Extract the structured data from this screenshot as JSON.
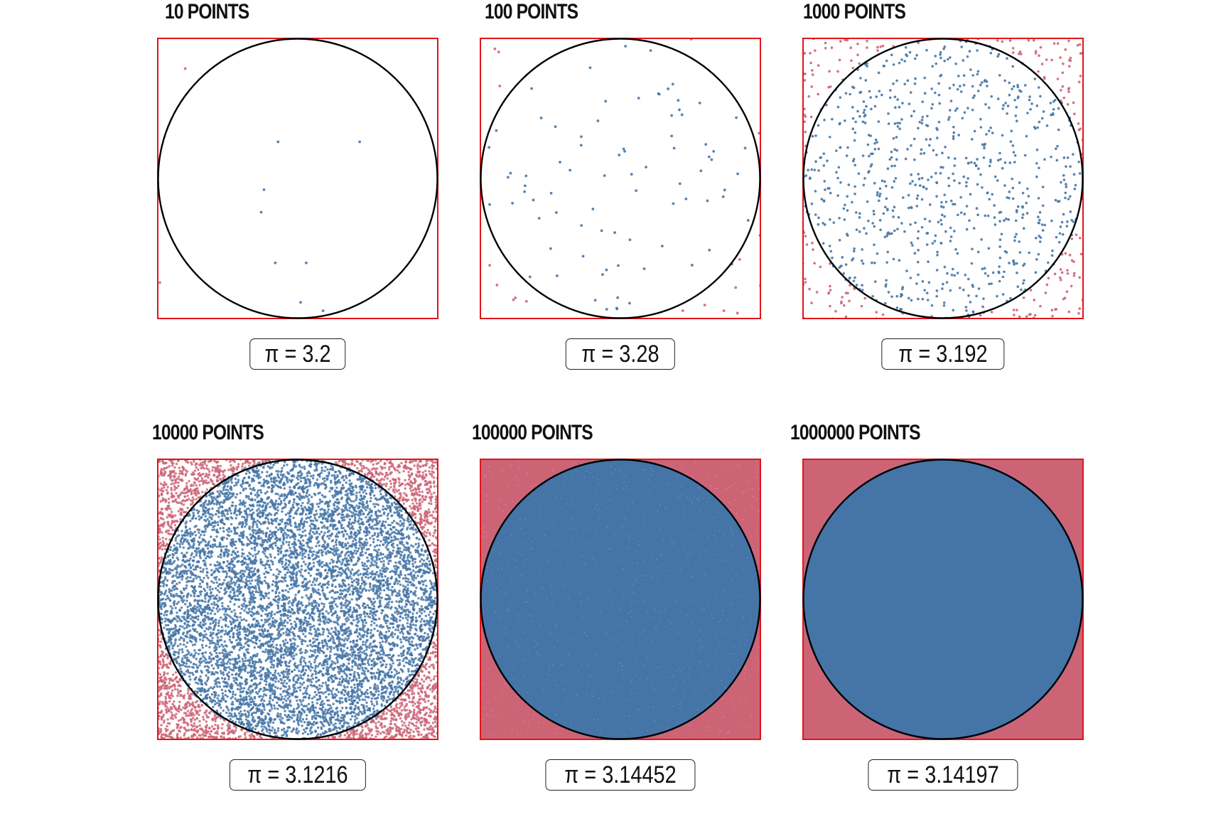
{
  "chart_data": [
    {
      "type": "scatter",
      "title": "10 POINTS",
      "n_points": 10,
      "pi_estimate": 3.2,
      "label": "π = 3.2",
      "inside_points": [
        [
          0.43,
          0.37
        ],
        [
          0.72,
          0.37
        ],
        [
          0.38,
          0.54
        ],
        [
          0.37,
          0.62
        ],
        [
          0.42,
          0.8
        ],
        [
          0.53,
          0.8
        ],
        [
          0.51,
          0.94
        ],
        [
          0.59,
          0.97
        ]
      ],
      "outside_points": [
        [
          0.1,
          0.11
        ],
        [
          0.01,
          0.87
        ]
      ]
    },
    {
      "type": "scatter",
      "title": "100 POINTS",
      "n_points": 100,
      "pi_estimate": 3.28,
      "label": "π = 3.28"
    },
    {
      "type": "scatter",
      "title": "1000 POINTS",
      "n_points": 1000,
      "pi_estimate": 3.192,
      "label": "π = 3.192"
    },
    {
      "type": "scatter",
      "title": "10000 POINTS",
      "n_points": 10000,
      "pi_estimate": 3.1216,
      "label": "π = 3.1216"
    },
    {
      "type": "scatter",
      "title": "100000 POINTS",
      "n_points": 100000,
      "pi_estimate": 3.14452,
      "label": "π = 3.14452"
    },
    {
      "type": "scatter",
      "title": "1000000 POINTS",
      "n_points": 1000000,
      "pi_estimate": 3.14197,
      "label": "π = 3.14197"
    }
  ],
  "colors": {
    "inside": "#4575a7",
    "outside": "#cd6476",
    "square_border": "#e0151b",
    "circle": "#000000"
  }
}
